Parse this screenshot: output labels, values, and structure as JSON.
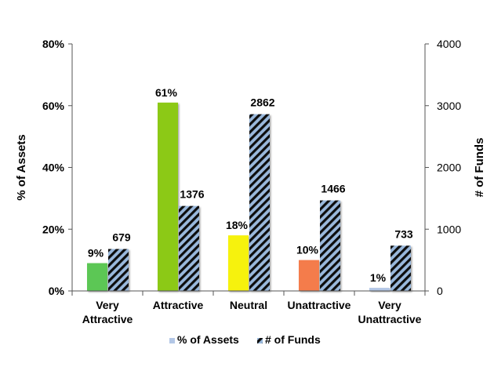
{
  "chart_data": {
    "type": "bar",
    "categories": [
      [
        "Very",
        "Attractive"
      ],
      [
        "Attractive"
      ],
      [
        "Neutral"
      ],
      [
        "Unattractive"
      ],
      [
        "Very",
        "Unattractive"
      ]
    ],
    "series": [
      {
        "name": "% of Assets",
        "axis": "left",
        "values": [
          9,
          61,
          18,
          10,
          1
        ],
        "labels": [
          "9%",
          "61%",
          "18%",
          "10%",
          "1%"
        ],
        "colors": [
          "#5cc754",
          "#8cc919",
          "#f6f20a",
          "#f47c4c",
          "#b3c7e6"
        ]
      },
      {
        "name": "# of Funds",
        "axis": "right",
        "values": [
          679,
          1376,
          2862,
          1466,
          733
        ],
        "labels": [
          "679",
          "1376",
          "2862",
          "1466",
          "733"
        ],
        "pattern": "diagonal-stripes",
        "colors": [
          "#99b8dc",
          "#0d0d0d"
        ]
      }
    ],
    "ylabel": "% of Assets",
    "ylim": [
      0,
      80
    ],
    "yticks": [
      "0%",
      "20%",
      "40%",
      "60%",
      "80%"
    ],
    "ytick_values": [
      0,
      20,
      40,
      60,
      80
    ],
    "y2label": "# of Funds",
    "y2lim": [
      0,
      4000
    ],
    "y2ticks": [
      "0",
      "1000",
      "2000",
      "3000",
      "4000"
    ],
    "y2tick_values": [
      0,
      1000,
      2000,
      3000,
      4000
    ],
    "grid": false,
    "legend": "bottom"
  }
}
